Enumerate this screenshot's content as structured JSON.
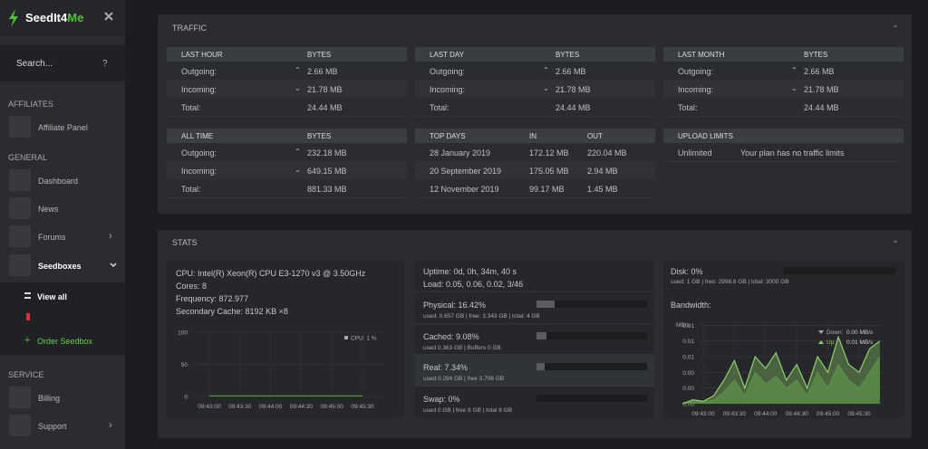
{
  "sidebar": {
    "brand_a": "SeedIt4",
    "brand_b": "Me",
    "search": "Search...",
    "help": "?",
    "affiliates": "AFFILIATES",
    "affiliate_panel": "Affiliate Panel",
    "general": "GENERAL",
    "dashboard": "Dashboard",
    "news": "News",
    "forums": "Forums",
    "seedboxes": "Seedboxes",
    "view_all": "View all",
    "order_seedbox": "Order Seedbox",
    "service": "SERVICE",
    "billing": "Billing",
    "support": "Support"
  },
  "traffic": {
    "title": "TRAFFIC",
    "tables": [
      {
        "header": [
          "LAST HOUR",
          "BYTES"
        ],
        "rows": [
          [
            "Outgoing:",
            "2.66 MB"
          ],
          [
            "Incoming:",
            "21.78 MB"
          ],
          [
            "Total:",
            "24.44 MB"
          ]
        ]
      },
      {
        "header": [
          "LAST DAY",
          "BYTES"
        ],
        "rows": [
          [
            "Outgoing:",
            "2.66 MB"
          ],
          [
            "Incoming:",
            "21.78 MB"
          ],
          [
            "Total:",
            "24.44 MB"
          ]
        ]
      },
      {
        "header": [
          "LAST MONTH",
          "BYTES"
        ],
        "rows": [
          [
            "Outgoing:",
            "2.66 MB"
          ],
          [
            "Incoming:",
            "21.78 MB"
          ],
          [
            "Total:",
            "24.44 MB"
          ]
        ]
      },
      {
        "header": [
          "ALL TIME",
          "BYTES"
        ],
        "rows": [
          [
            "Outgoing:",
            "232.18 MB"
          ],
          [
            "Incoming:",
            "649.15 MB"
          ],
          [
            "Total:",
            "881.33 MB"
          ]
        ]
      },
      {
        "header": [
          "TOP DAYS",
          "IN",
          "OUT"
        ],
        "rows": [
          [
            "28 January 2019",
            "172.12 MB",
            "220.04 MB"
          ],
          [
            "20 September 2019",
            "175.05 MB",
            "2.94 MB"
          ],
          [
            "12 November 2019",
            "99.17 MB",
            "1.45 MB"
          ]
        ]
      },
      {
        "header": [
          "UPLOAD LIMITS"
        ],
        "rows": [
          [
            "Unlimited",
            "Your plan has no traffic limits"
          ]
        ]
      }
    ]
  },
  "stats": {
    "title": "STATS",
    "cpu": {
      "lines": [
        "CPU: Intel(R) Xeon(R) CPU E3-1270 v3 @ 3.50GHz",
        "Cores: 8",
        "Frequency: 872.977",
        "Secondary Cache: 8192 KB ×8"
      ],
      "chart": {
        "type": "line",
        "categories": [
          "09:43:00",
          "09:43:30",
          "09:44:00",
          "09:44:30",
          "09:45:00",
          "09:45:30"
        ],
        "ylim": [
          0,
          100
        ],
        "yticks": [
          0,
          50,
          100
        ],
        "series": [
          {
            "name": "CPU: 1 %",
            "color": "#5e9e3e",
            "values": [
              1,
              1,
              1,
              1,
              1,
              1
            ]
          }
        ]
      }
    },
    "memory": {
      "lines": [
        "Uptime: 0d, 0h, 34m, 40 s",
        "Load: 0.05, 0.06, 0.02, 3/46"
      ],
      "meters": [
        {
          "name": "Physical:",
          "value": 16.42,
          "value_label": "16.42%",
          "detail": "used: 0.657 GB | free: 3.343 GB | total: 4 GB"
        },
        {
          "name": "Cached:",
          "value": 9.08,
          "value_label": "9.08%",
          "detail": "used 0.363 GB | Buffers 0 GB"
        },
        {
          "name": "Real:",
          "value": 7.34,
          "value_label": "7.34%",
          "detail": "used 0.294 GB | free 3.706 GB"
        },
        {
          "name": "Swap:",
          "value": 0,
          "value_label": "0%",
          "detail": "used 0 GB | free 8 GB | total 8 GB"
        }
      ]
    },
    "disk": {
      "name": "Disk:",
      "value": 0,
      "value_label": "0%",
      "detail": "used: 1 GB | free: 2998.6 GB | total: 3000 GB",
      "bandwidth": "Bandwidth:",
      "chart": {
        "type": "area",
        "y_label": "MB/s",
        "categories": [
          null,
          null,
          "09:43:00",
          null,
          null,
          "09:43:30",
          null,
          null,
          "09:44:00",
          null,
          null,
          "09:44:30",
          null,
          null,
          "09:45:00",
          null,
          null,
          "09:45:30",
          null,
          null
        ],
        "ylim": [
          0,
          0.0105
        ],
        "yticks": [
          {
            "value": 0,
            "label": "0.00"
          },
          {
            "value": 0.002,
            "label": "0.00"
          },
          {
            "value": 0.004,
            "label": "0.00"
          },
          {
            "value": 0.006,
            "label": "0.01"
          },
          {
            "value": 0.008,
            "label": "0.01"
          },
          {
            "value": 0.01,
            "label": "0.01"
          }
        ],
        "series": [
          {
            "name": "Down:",
            "value_label": "0.00 MB/s",
            "color": "#3f6b34",
            "values": [
              0,
              0.0003,
              0.0002,
              0.0005,
              0.0015,
              0.003,
              0.001,
              0.004,
              0.0025,
              0.0035,
              0.002,
              0.003,
              0.001,
              0.004,
              0.002,
              0.005,
              0.003,
              0.002,
              0.004,
              0.006
            ]
          },
          {
            "name": "Up:",
            "value_label": "0.01 MB/s",
            "color": "#8fd16a",
            "values": [
              0,
              0.0005,
              0.0003,
              0.001,
              0.003,
              0.0055,
              0.002,
              0.006,
              0.0045,
              0.0065,
              0.003,
              0.005,
              0.002,
              0.006,
              0.004,
              0.0085,
              0.005,
              0.004,
              0.007,
              0.008
            ]
          }
        ]
      }
    }
  }
}
